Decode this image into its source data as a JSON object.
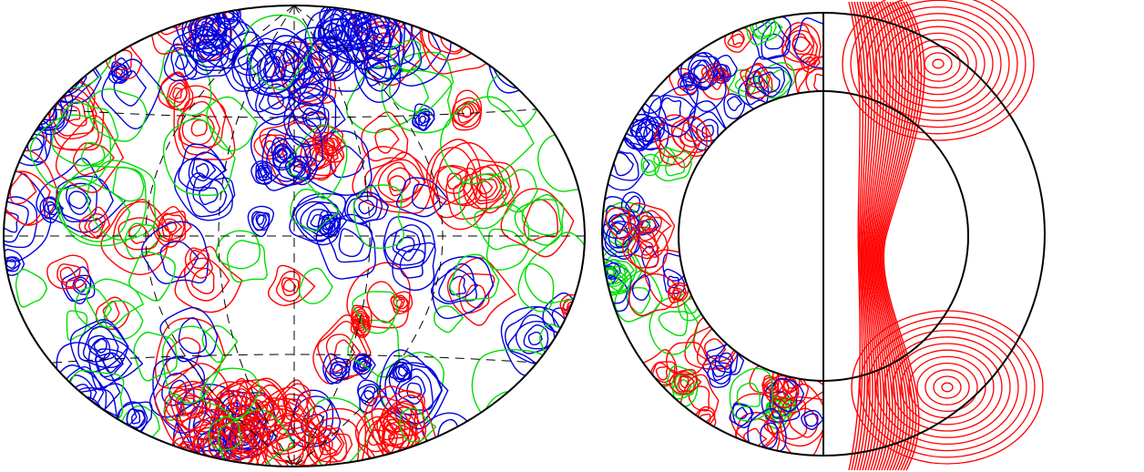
{
  "figure": {
    "panels": [
      {
        "id": "left",
        "kind": "hammer-aitoff projection"
      },
      {
        "id": "right",
        "kind": "meridional slice"
      }
    ],
    "colors": {
      "positive": "#ff0000",
      "zero": "#00dd00",
      "negative": "#0000dd",
      "outline": "#000000",
      "background": "#ffffff"
    }
  }
}
